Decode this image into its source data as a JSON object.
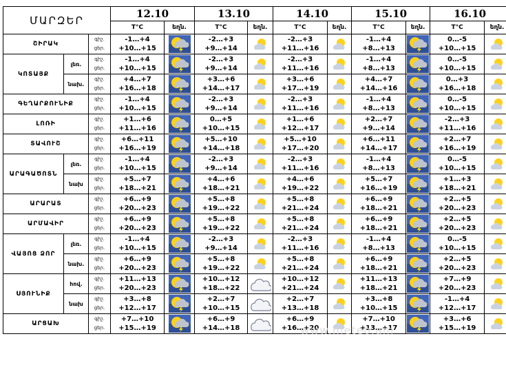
{
  "title": "ՄԱՐԶԵՐ",
  "dates": [
    "12.10",
    "13.10",
    "14.10",
    "15.10",
    "16.10"
  ],
  "sub": {
    "temp": "T°C",
    "icon": "եղն."
  },
  "time_labels": {
    "night": "գիշ.",
    "day": "ցեր."
  },
  "regions": [
    {
      "name": "ՇԻՐԱԿ",
      "rows": [
        {
          "zone": "",
          "night": [
            "-1…+4",
            "-2…+3",
            "-2…+3",
            "-1…+4",
            "0…-5"
          ],
          "day": [
            "+10…+15",
            "+9…+14",
            "+11…+16",
            "+8…+13",
            "+10…+15"
          ],
          "icons": [
            "storm",
            "partly",
            "partly",
            "storm",
            "partly"
          ]
        }
      ]
    },
    {
      "name": "ԿՈՏԱՅՔ",
      "rows": [
        {
          "zone": "լեռ.",
          "night": [
            "-1…+4",
            "-2…+3",
            "-2…+3",
            "-1…+4",
            "0…-5"
          ],
          "day": [
            "+10…+15",
            "+9…+14",
            "+11…+16",
            "+8…+13",
            "+10…+15"
          ],
          "icons": [
            "storm",
            "partly",
            "partly",
            "storm",
            "partly"
          ]
        },
        {
          "zone": "նախ.",
          "night": [
            "+4…+7",
            "+3…+6",
            "+3…+6",
            "+4…+7",
            "0…+3"
          ],
          "day": [
            "+16…+18",
            "+14…+17",
            "+17…+19",
            "+14…+16",
            "+16…+18"
          ],
          "icons": [
            "storm",
            "partly",
            "partly",
            "storm",
            "partly"
          ]
        }
      ]
    },
    {
      "name": "ԳԵՂԱՐՔՈՒՆԻՔ",
      "rows": [
        {
          "zone": "",
          "night": [
            "-1…+4",
            "-2…+3",
            "-2…+3",
            "-1…+4",
            "0…-5"
          ],
          "day": [
            "+10…+15",
            "+9…+14",
            "+11…+16",
            "+8…+13",
            "+10…+15"
          ],
          "icons": [
            "storm",
            "partly",
            "partly",
            "storm",
            "partly"
          ]
        }
      ]
    },
    {
      "name": "ԼՈՌԻ",
      "rows": [
        {
          "zone": "",
          "night": [
            "+1…+6",
            "0…+5",
            "+1…+6",
            "+2…+7",
            "-2…+3"
          ],
          "day": [
            "+11…+16",
            "+10…+15",
            "+12…+17",
            "+9…+14",
            "+11…+16"
          ],
          "icons": [
            "storm",
            "partly",
            "partly",
            "storm",
            "partly"
          ]
        }
      ]
    },
    {
      "name": "ՏԱՎՈՒՇ",
      "rows": [
        {
          "zone": "",
          "night": [
            "+6…+11",
            "+5…+10",
            "+5…+10",
            "+6…+11",
            "+2…+7"
          ],
          "day": [
            "+16…+19",
            "+14…+18",
            "+17…+20",
            "+14…+17",
            "+16…+19"
          ],
          "icons": [
            "storm",
            "partly",
            "partly",
            "storm",
            "partly"
          ]
        }
      ]
    },
    {
      "name": "ԱՐԱԳԱԾՈՏՆ",
      "rows": [
        {
          "zone": "լեռ.",
          "night": [
            "-1…+4",
            "-2…+3",
            "-2…+3",
            "-1…+4",
            "0…-5"
          ],
          "day": [
            "+10…+15",
            "+9…+14",
            "+11…+16",
            "+8…+13",
            "+10…+15"
          ],
          "icons": [
            "storm",
            "partly",
            "partly",
            "storm",
            "partly"
          ]
        },
        {
          "zone": "նախ",
          "night": [
            "+5…+7",
            "+4…+6",
            "+4…+6",
            "+5…+7",
            "+1…+3"
          ],
          "day": [
            "+18…+21",
            "+18…+21",
            "+19…+22",
            "+16…+19",
            "+18…+21"
          ],
          "icons": [
            "storm",
            "partly",
            "partly",
            "storm",
            "partly"
          ]
        }
      ]
    },
    {
      "name": "ԱՐԱՐԱՏ",
      "rows": [
        {
          "zone": "",
          "night": [
            "+6…+9",
            "+5…+8",
            "+5…+8",
            "+6…+9",
            "+2…+5"
          ],
          "day": [
            "+20…+23",
            "+19…+22",
            "+21…+24",
            "+18…+21",
            "+20…+23"
          ],
          "icons": [
            "storm",
            "partly",
            "partly",
            "storm",
            "partly"
          ]
        }
      ]
    },
    {
      "name": "ԱՐՄԱՎԻՐ",
      "rows": [
        {
          "zone": "",
          "night": [
            "+6…+9",
            "+5…+8",
            "+5…+8",
            "+6…+9",
            "+2…+5"
          ],
          "day": [
            "+20…+23",
            "+19…+22",
            "+21…+24",
            "+18…+21",
            "+20…+23"
          ],
          "icons": [
            "storm",
            "partly",
            "partly",
            "storm",
            "partly"
          ]
        }
      ]
    },
    {
      "name": "ՎԱՅՈՑ ՁՈՐ",
      "rows": [
        {
          "zone": "լեռ.",
          "night": [
            "-1…+4",
            "-2…+3",
            "-2…+3",
            "-1…+4",
            "0…-5"
          ],
          "day": [
            "+10…+15",
            "+9…+14",
            "+11…+16",
            "+8…+13",
            "+10…+15"
          ],
          "icons": [
            "storm",
            "partly",
            "partly",
            "storm",
            "partly"
          ]
        },
        {
          "zone": "նախ.",
          "night": [
            "+6…+9",
            "+5…+8",
            "+5…+8",
            "+6…+9",
            "+2…+5"
          ],
          "day": [
            "+20…+23",
            "+19…+22",
            "+21…+24",
            "+18…+21",
            "+20…+23"
          ],
          "icons": [
            "storm",
            "partly",
            "partly",
            "storm",
            "partly"
          ]
        }
      ]
    },
    {
      "name": "ՍՅՈՒՆԻՔ",
      "rows": [
        {
          "zone": "հով.",
          "night": [
            "+11…+13",
            "+10…+12",
            "+10…+12",
            "+11…+13",
            "+7…+9"
          ],
          "day": [
            "+20…+23",
            "+18…+22",
            "+21…+24",
            "+18…+21",
            "+20…+23"
          ],
          "icons": [
            "storm",
            "cloud",
            "partly",
            "storm",
            "partly"
          ]
        },
        {
          "zone": "նախ",
          "night": [
            "+3…+8",
            "+2…+7",
            "+2…+7",
            "+3…+8",
            "-1…+4"
          ],
          "day": [
            "+12…+17",
            "+10…+15",
            "+13…+18",
            "+10…+15",
            "+12…+17"
          ],
          "icons": [
            "storm",
            "cloud",
            "partly",
            "storm",
            "partly"
          ]
        }
      ]
    },
    {
      "name": "ԱՐՑԱԽ",
      "rows": [
        {
          "zone": "",
          "night": [
            "+7…+10",
            "+6…+9",
            "+6…+9",
            "+7…+10",
            "+3…+6"
          ],
          "day": [
            "+15…+19",
            "+14…+18",
            "+16…+20",
            "+13…+17",
            "+15…+19"
          ],
          "icons": [
            "storm",
            "cloud",
            "partly",
            "storm",
            "partly"
          ]
        }
      ]
    }
  ],
  "watermark": "www.meteo.am"
}
